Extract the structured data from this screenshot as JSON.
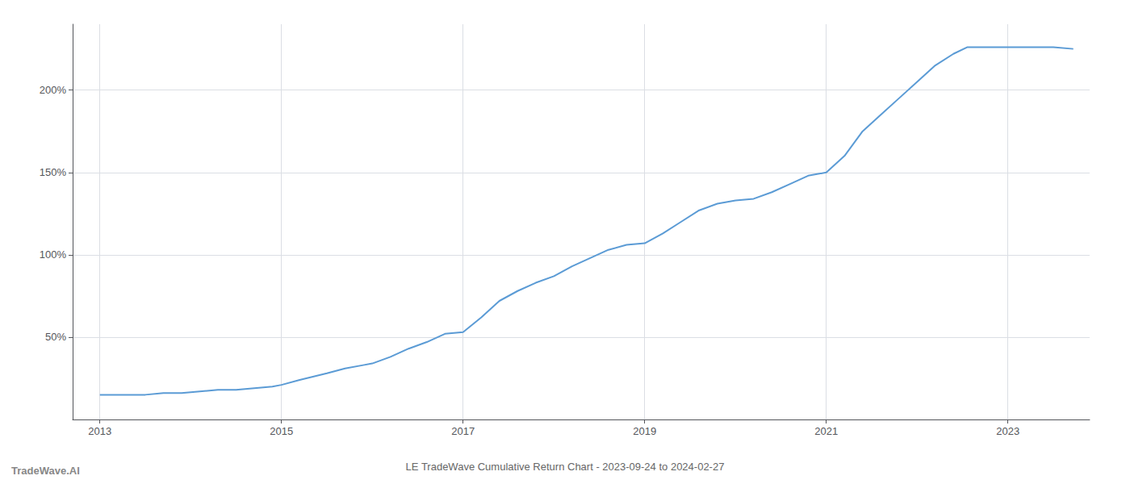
{
  "chart_data": {
    "type": "line",
    "title": "LE TradeWave Cumulative Return Chart - 2023-09-24 to 2024-02-27",
    "annotations": [
      "TradeWave.AI"
    ],
    "color": "#5b9bd5",
    "grid": true,
    "x": [
      2013.0,
      2013.15,
      2013.3,
      2013.5,
      2013.7,
      2013.9,
      2014.1,
      2014.3,
      2014.5,
      2014.7,
      2014.9,
      2015.0,
      2015.2,
      2015.5,
      2015.7,
      2015.9,
      2016.0,
      2016.2,
      2016.4,
      2016.6,
      2016.8,
      2017.0,
      2017.2,
      2017.4,
      2017.6,
      2017.8,
      2018.0,
      2018.2,
      2018.4,
      2018.6,
      2018.8,
      2019.0,
      2019.2,
      2019.4,
      2019.6,
      2019.8,
      2020.0,
      2020.2,
      2020.4,
      2020.6,
      2020.8,
      2021.0,
      2021.2,
      2021.4,
      2021.6,
      2021.8,
      2022.0,
      2022.2,
      2022.4,
      2022.55,
      2022.6,
      2022.8,
      2023.0,
      2023.2,
      2023.5,
      2023.72
    ],
    "values": [
      15,
      15,
      15,
      15,
      16,
      16,
      17,
      18,
      18,
      19,
      20,
      21,
      24,
      28,
      31,
      33,
      34,
      38,
      43,
      47,
      52,
      53,
      62,
      72,
      78,
      83,
      87,
      93,
      98,
      103,
      106,
      107,
      113,
      120,
      127,
      131,
      133,
      134,
      138,
      143,
      148,
      150,
      160,
      175,
      185,
      195,
      205,
      215,
      222,
      226,
      226,
      226,
      226,
      226,
      226,
      225
    ],
    "xlim": [
      2012.7,
      2023.9
    ],
    "ylim": [
      0,
      240
    ],
    "xticks": [
      2013,
      2015,
      2017,
      2019,
      2021,
      2023
    ],
    "yticks": [
      {
        "value": 50,
        "label": "50%"
      },
      {
        "value": 100,
        "label": "100%"
      },
      {
        "value": 150,
        "label": "150%"
      },
      {
        "value": 200,
        "label": "200%"
      }
    ]
  }
}
